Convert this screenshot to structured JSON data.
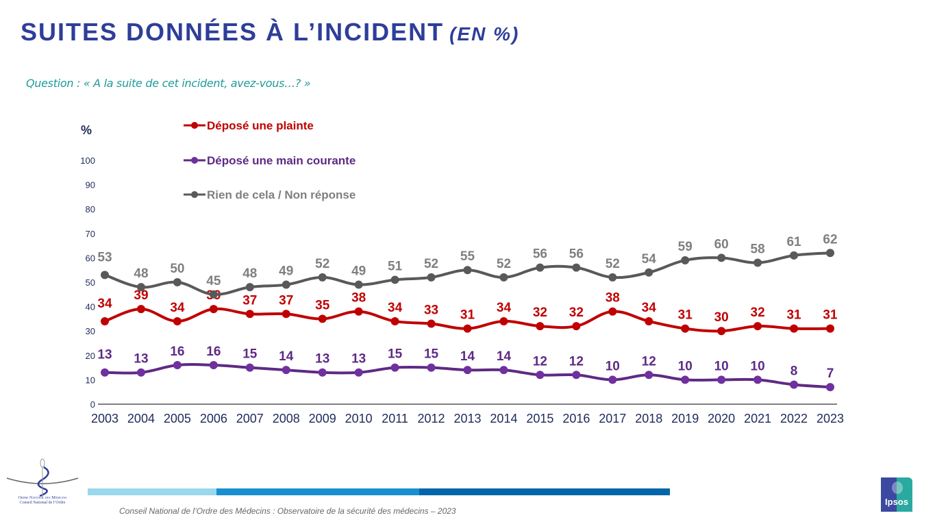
{
  "header": {
    "title": "SUITES DONNÉES À L’INCIDENT",
    "title_unit": "(EN %)",
    "question": "Question : « A la suite de cet incident, avez-vous…? »"
  },
  "chart_data": {
    "type": "line",
    "title": "SUITES DONNÉES À L’INCIDENT (EN %)",
    "subtitle": "Question : « A la suite de cet incident, avez-vous…? »",
    "xlabel": "",
    "ylabel": "%",
    "ylim": [
      0,
      100
    ],
    "yticks": [
      0,
      10,
      20,
      30,
      40,
      50,
      60,
      70,
      80,
      90,
      100
    ],
    "grid": false,
    "legend_position": "top-left",
    "x": [
      "2003",
      "2004",
      "2005",
      "2006",
      "2007",
      "2008",
      "2009",
      "2010",
      "2011",
      "2012",
      "2013",
      "2014",
      "2015",
      "2016",
      "2017",
      "2018",
      "2019",
      "2020",
      "2021",
      "2022",
      "2023"
    ],
    "series": [
      {
        "name": "Déposé une plainte",
        "color": "#c00000",
        "values": [
          34,
          39,
          34,
          39,
          37,
          37,
          35,
          38,
          34,
          33,
          31,
          34,
          32,
          32,
          38,
          34,
          31,
          30,
          32,
          31,
          31
        ]
      },
      {
        "name": "Déposé une main courante",
        "color": "#7030a0",
        "line_color": "#5e2a84",
        "values": [
          13,
          13,
          16,
          16,
          15,
          14,
          13,
          13,
          15,
          15,
          14,
          14,
          12,
          12,
          10,
          12,
          10,
          10,
          10,
          8,
          7
        ]
      },
      {
        "name": "Rien de cela / Non réponse",
        "color": "#595959",
        "label_color": "#7f7f7f",
        "values": [
          53,
          48,
          50,
          45,
          48,
          49,
          52,
          49,
          51,
          52,
          55,
          52,
          56,
          56,
          52,
          54,
          59,
          60,
          58,
          61,
          62
        ]
      }
    ]
  },
  "footer": {
    "source": "Conseil National de l’Ordre des Médecins : Observatoire de la sécurité des médecins – 2023",
    "org_logo_line1": "Ordre National des Médecins",
    "org_logo_line2": "Conseil National de l’Ordre",
    "partner_logo": "Ipsos"
  }
}
